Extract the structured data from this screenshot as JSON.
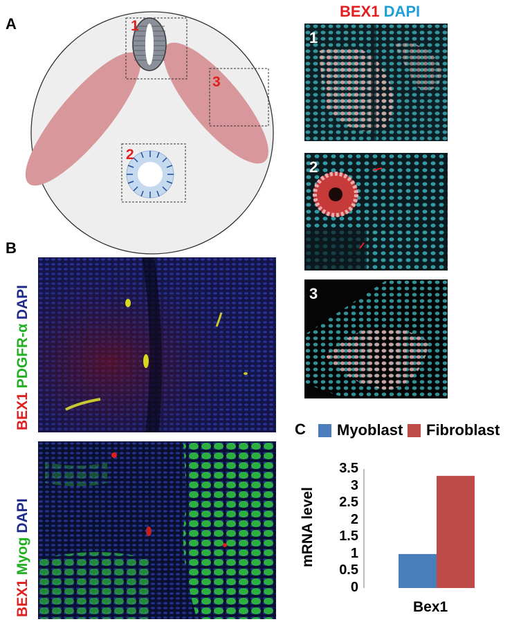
{
  "panels": {
    "a": "A",
    "b": "B",
    "c": "C"
  },
  "schematic": {
    "region_labels": [
      "1",
      "2",
      "3"
    ]
  },
  "panel_a_images": {
    "header_bex1": "BEX1",
    "header_dapi": "DAPI",
    "image_numbers": [
      "1",
      "2",
      "3"
    ]
  },
  "panel_b": {
    "top_label": {
      "bex1": "BEX1",
      "marker": "PDGFR-α",
      "dapi": "DAPI"
    },
    "bottom_label": {
      "bex1": "BEX1",
      "marker": "Myog",
      "dapi": "DAPI"
    }
  },
  "colors": {
    "myoblast": "#4a7ebb",
    "fibroblast": "#be4b48",
    "muscle_pink": "#d8979b",
    "dish_fill": "#eeeeee"
  },
  "chart_data": {
    "type": "bar",
    "categories": [
      "Bex1"
    ],
    "series": [
      {
        "name": "Myoblast",
        "values": [
          1
        ]
      },
      {
        "name": "Fibroblast",
        "values": [
          3.3
        ]
      }
    ],
    "title": "",
    "xlabel": "Bex1",
    "ylabel": "mRNA level",
    "ylim": [
      0,
      3.5
    ],
    "yticks": [
      "3.5",
      "3",
      "2.5",
      "2",
      "1.5",
      "1",
      "0.5",
      "0"
    ],
    "legend_position": "top",
    "grid": false
  }
}
